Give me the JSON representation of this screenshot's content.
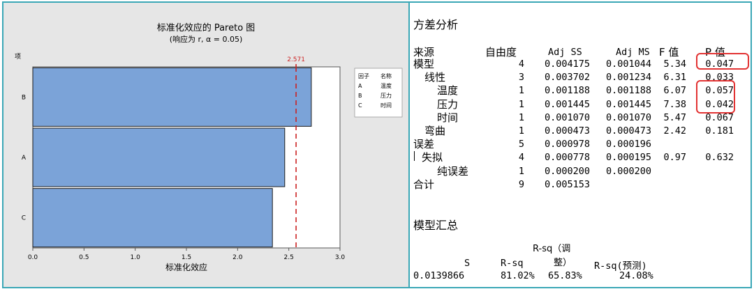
{
  "chart_data": {
    "type": "bar",
    "orientation": "horizontal",
    "title": "标准化效应的 Pareto 图",
    "subtitle": "(响应为 r, α = 0.05)",
    "xlabel": "标准化效应",
    "ylabel": "项",
    "categories": [
      "B",
      "A",
      "C"
    ],
    "values": [
      2.72,
      2.46,
      2.34
    ],
    "xlim": [
      0.0,
      3.0
    ],
    "x_ticks": [
      "0.0",
      "0.5",
      "1.0",
      "1.5",
      "2.0",
      "2.5",
      "3.0"
    ],
    "x_tick_values": [
      0.0,
      0.5,
      1.0,
      1.5,
      2.0,
      2.5,
      3.0
    ],
    "reference_line": {
      "value": 2.571,
      "label": "2.571",
      "color": "#cc2222"
    },
    "bar_color": "#7ba3d8",
    "bar_edge_color": "#1a1a1a",
    "legend": {
      "placement": "right",
      "headers": [
        "因子",
        "名称"
      ],
      "entries": [
        {
          "factor": "A",
          "name": "温度"
        },
        {
          "factor": "B",
          "name": "压力"
        },
        {
          "factor": "C",
          "name": "时间"
        }
      ]
    },
    "grid": false
  },
  "anova": {
    "title": "方差分析",
    "headers": {
      "source": "来源",
      "df": "自由度",
      "adj_ss": "Adj SS",
      "adj_ms": "Adj MS",
      "f": "F 值",
      "p": "P 值"
    },
    "rows": [
      {
        "source": "模型",
        "df": "4",
        "adj_ss": "0.004175",
        "adj_ms": "0.001044",
        "f": "5.34",
        "p": "0.047"
      },
      {
        "source": "线性",
        "df": "3",
        "adj_ss": "0.003702",
        "adj_ms": "0.001234",
        "f": "6.31",
        "p": "0.033"
      },
      {
        "source": "温度",
        "df": "1",
        "adj_ss": "0.001188",
        "adj_ms": "0.001188",
        "f": "6.07",
        "p": "0.057"
      },
      {
        "source": "压力",
        "df": "1",
        "adj_ss": "0.001445",
        "adj_ms": "0.001445",
        "f": "7.38",
        "p": "0.042"
      },
      {
        "source": "时间",
        "df": "1",
        "adj_ss": "0.001070",
        "adj_ms": "0.001070",
        "f": "5.47",
        "p": "0.067"
      },
      {
        "source": "弯曲",
        "df": "1",
        "adj_ss": "0.000473",
        "adj_ms": "0.000473",
        "f": "2.42",
        "p": "0.181"
      },
      {
        "source": "误差",
        "df": "5",
        "adj_ss": "0.000978",
        "adj_ms": "0.000196",
        "f": "",
        "p": ""
      },
      {
        "source": "失拟",
        "df": "4",
        "adj_ss": "0.000778",
        "adj_ms": "0.000195",
        "f": "0.97",
        "p": "0.632"
      },
      {
        "source": "纯误差",
        "df": "1",
        "adj_ss": "0.000200",
        "adj_ms": "0.000200",
        "f": "",
        "p": ""
      },
      {
        "source": "合计",
        "df": "9",
        "adj_ss": "0.005153",
        "adj_ms": "",
        "f": "",
        "p": ""
      }
    ]
  },
  "model_summary": {
    "title": "模型汇总",
    "headers": {
      "s": "S",
      "rsq": "R-sq",
      "rsq_adj_line1": "R-sq（调",
      "rsq_adj_line2": "整）",
      "rsq_pred": "R-sq(预测)"
    },
    "values": {
      "s": "0.0139866",
      "rsq": "81.02%",
      "rsq_adj": "65.83%",
      "rsq_pred": "24.08%"
    }
  },
  "highlight_color": "#e23232"
}
